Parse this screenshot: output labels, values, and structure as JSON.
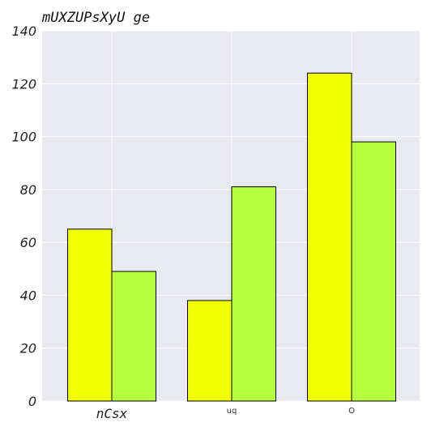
{
  "chart_data": {
    "type": "bar",
    "title": "mUXZUPsXyU ge",
    "categories": [
      "nCsx",
      "uq",
      "O"
    ],
    "series": [
      {
        "values": [
          65,
          38,
          124
        ],
        "color": "#f2ff00"
      },
      {
        "values": [
          49,
          81,
          98
        ],
        "color": "#b5ff3c"
      }
    ],
    "ylim": [
      0,
      140
    ],
    "yticks": [
      0,
      20,
      40,
      60,
      80,
      100,
      120,
      140
    ],
    "grid": true,
    "background": "#e9e9f1",
    "bar_edge_color": "#000000"
  }
}
